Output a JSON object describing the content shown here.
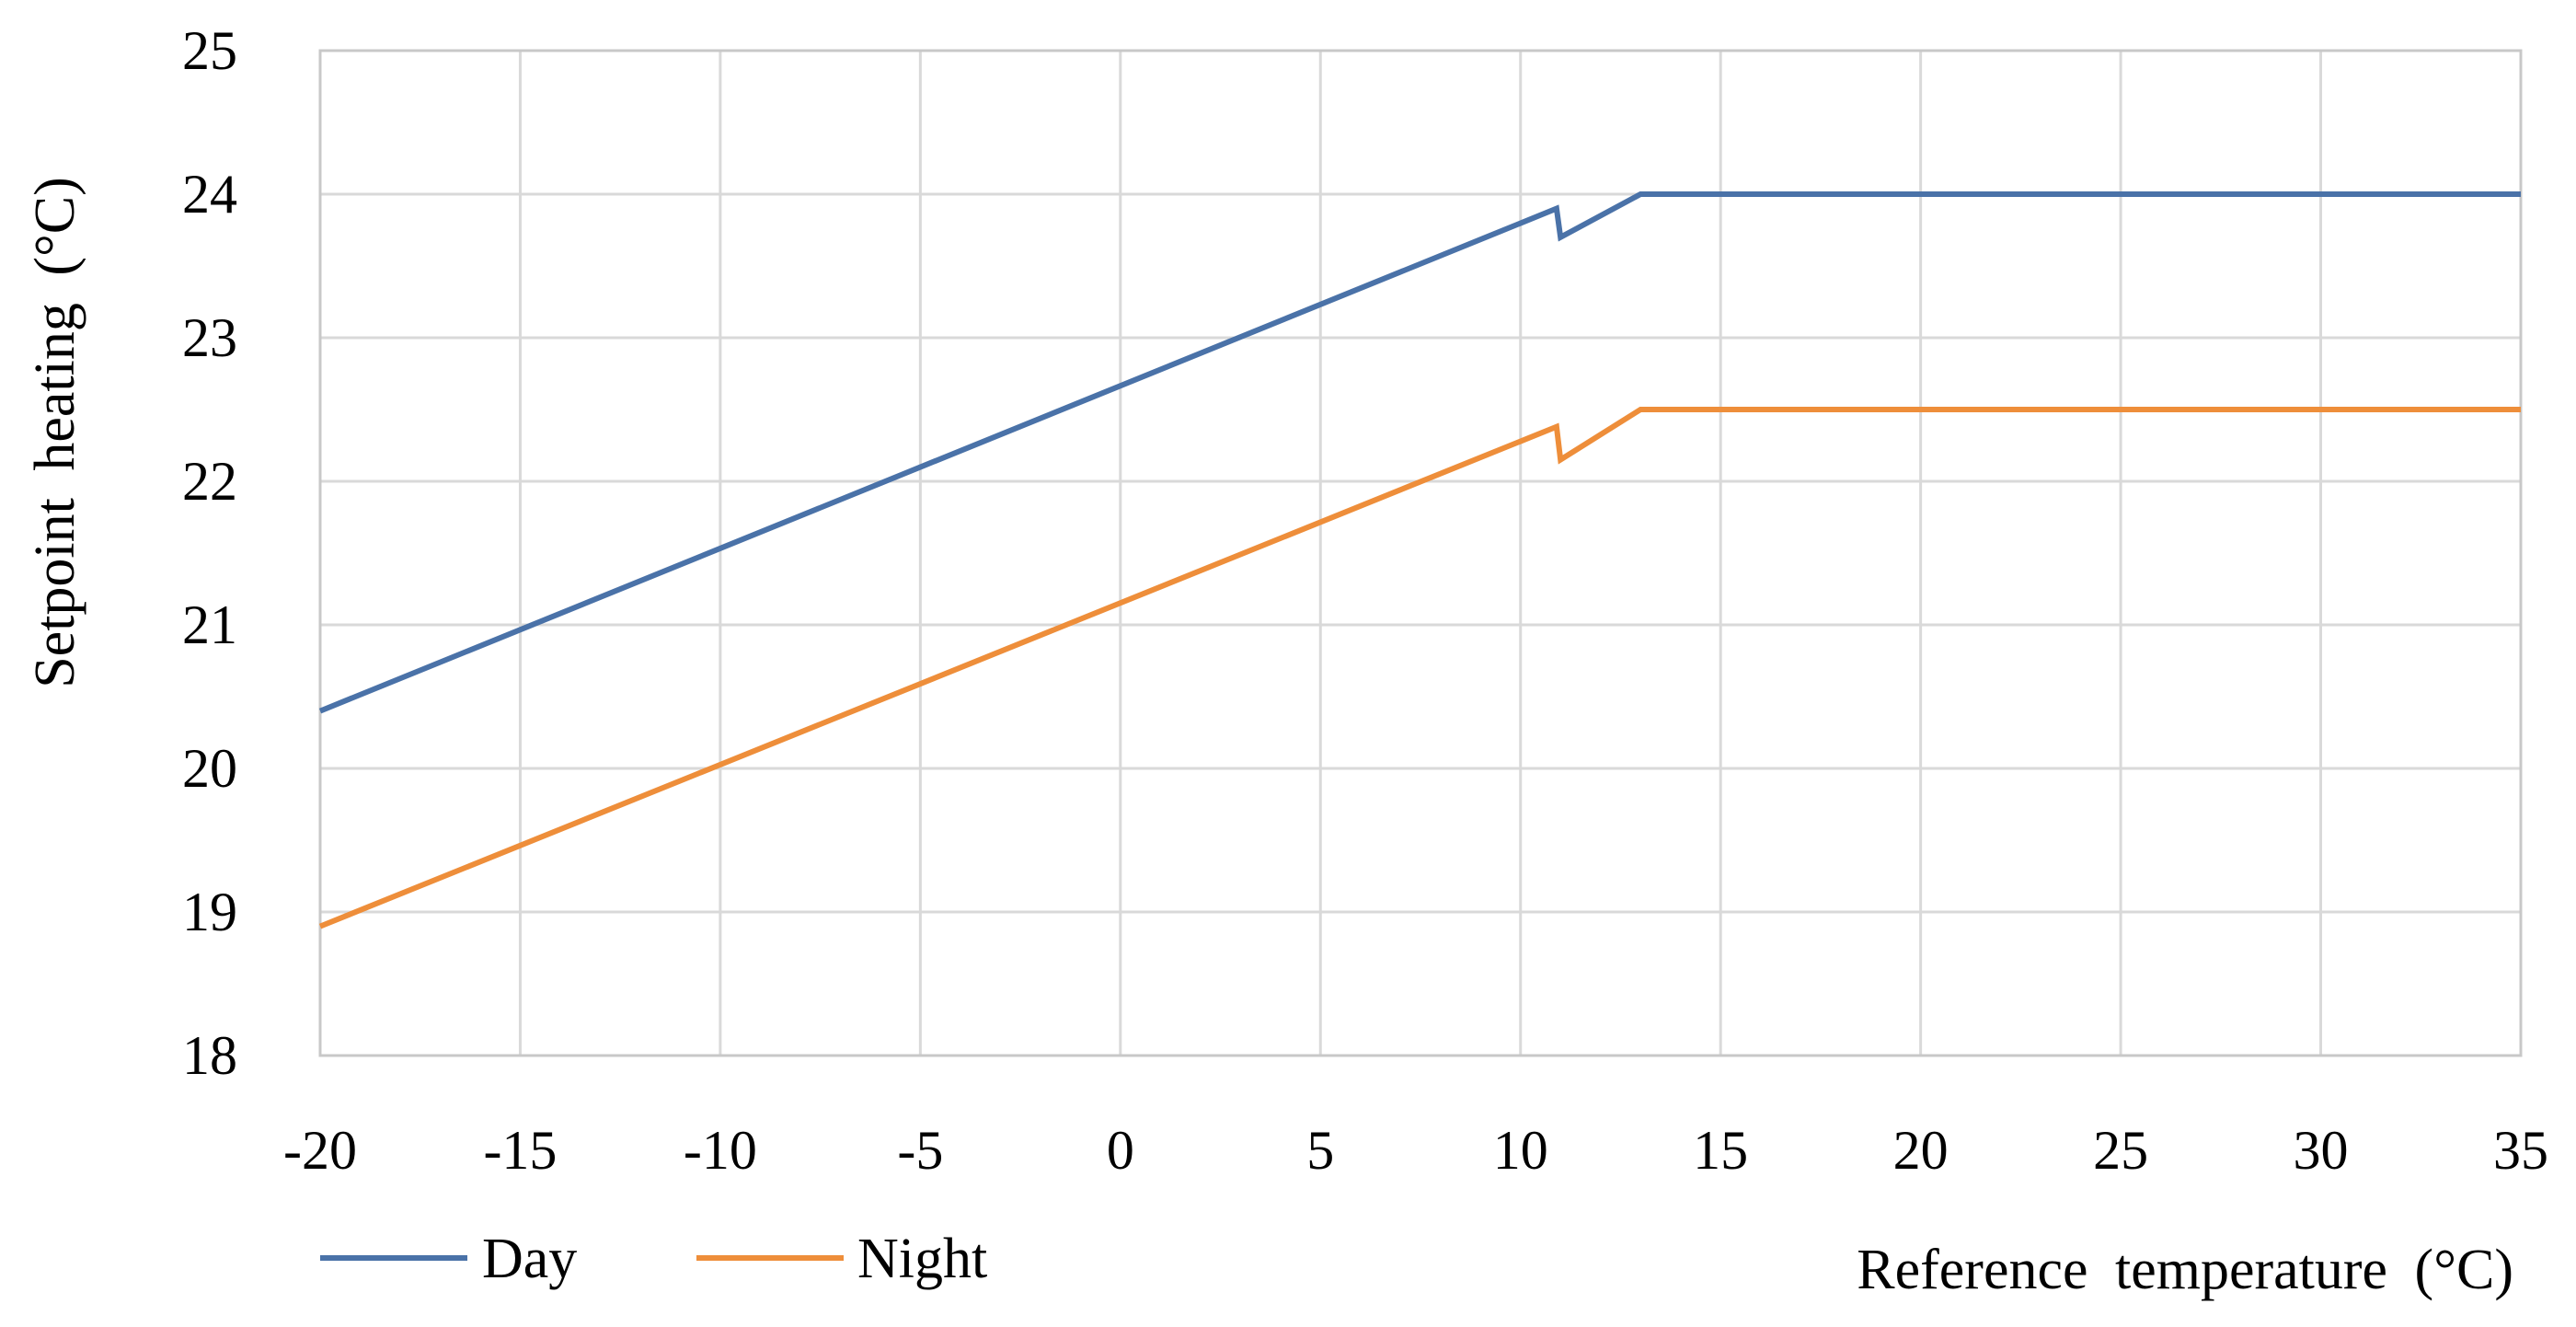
{
  "chart_data": {
    "type": "line",
    "title": "",
    "xlabel": "Reference temperature (°C)",
    "ylabel": "Setpoint heating (°C)",
    "xlim": [
      -20,
      35
    ],
    "ylim": [
      18,
      25
    ],
    "xticks": [
      -20,
      -15,
      -10,
      -5,
      0,
      5,
      10,
      15,
      20,
      25,
      30,
      35
    ],
    "yticks": [
      18,
      19,
      20,
      21,
      22,
      23,
      24,
      25
    ],
    "grid": true,
    "legend_position": "bottom-left",
    "series": [
      {
        "name": "Day",
        "color": "#4a72a8",
        "points": [
          [
            -20,
            20.4
          ],
          [
            10.9,
            23.9
          ],
          [
            11.0,
            23.7
          ],
          [
            13.0,
            24.0
          ],
          [
            35,
            24.0
          ]
        ]
      },
      {
        "name": "Night",
        "color": "#ee8e3a",
        "points": [
          [
            -20,
            18.9
          ],
          [
            10.9,
            22.38
          ],
          [
            11.0,
            22.15
          ],
          [
            13.0,
            22.5
          ],
          [
            35,
            22.5
          ]
        ]
      }
    ]
  }
}
